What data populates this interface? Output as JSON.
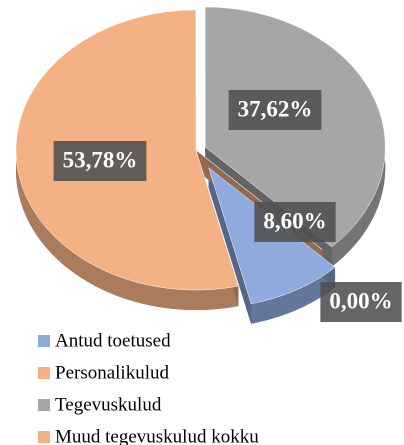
{
  "chart_data": {
    "type": "pie",
    "categories": [
      "Antud toetused",
      "Personalikulud",
      "Tegevuskulud",
      "Muud tegevuskulud kokku"
    ],
    "values": [
      8.6,
      53.78,
      37.62,
      0.0
    ],
    "value_labels": [
      "8,60%",
      "53,78%",
      "37,62%",
      "0,00%"
    ],
    "colors": [
      "#8faadc",
      "#f4b183",
      "#a6a6a6",
      "#f4b183"
    ],
    "legend": "bottom"
  }
}
